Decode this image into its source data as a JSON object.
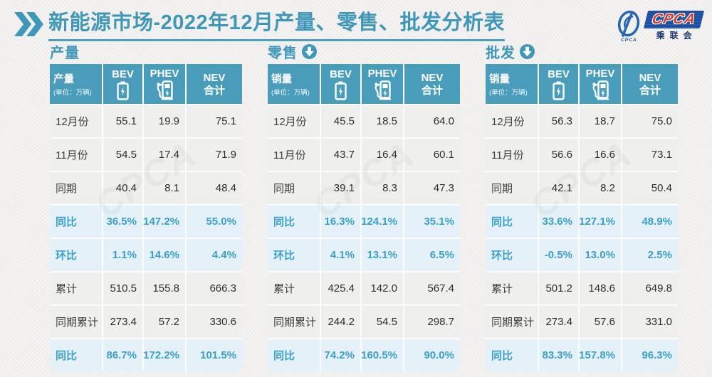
{
  "header": {
    "title_main": "新能源市场",
    "title_rest": "-2022年12月产量、零售、批发分析表",
    "logo_text": "CPCA",
    "logo_subtext": "乘联会",
    "logo_icon_caption": "CPCA"
  },
  "columns": {
    "bev": "BEV",
    "phev": "PHEV",
    "nev_line1": "NEV",
    "nev_line2": "合计"
  },
  "unit_label": "(单位：万辆)",
  "colors": {
    "accent_teal": "#3e98b9",
    "header_bg": "#4a9cbb",
    "row_bg": "#efefed",
    "highlight_row_bg": "#e4f1f9",
    "highlight_text": "#3aa0c8",
    "logo_blue": "#1e4f9e",
    "logo_red": "#cf3b2f"
  },
  "tables": [
    {
      "id": "production",
      "section_title": "产量",
      "down_arrow": false,
      "row_header_label": "产量",
      "watermark": "CPCA",
      "rows": [
        {
          "label": "12月份",
          "bev": "55.1",
          "phev": "19.9",
          "nev": "75.1",
          "highlight": false
        },
        {
          "label": "11月份",
          "bev": "54.5",
          "phev": "17.4",
          "nev": "71.9",
          "highlight": false
        },
        {
          "label": "同期",
          "bev": "40.4",
          "phev": "8.1",
          "nev": "48.4",
          "highlight": false
        },
        {
          "label": "同比",
          "bev": "36.5%",
          "phev": "147.2%",
          "nev": "55.0%",
          "highlight": true
        },
        {
          "label": "环比",
          "bev": "1.1%",
          "phev": "14.6%",
          "nev": "4.4%",
          "highlight": true
        },
        {
          "label": "累计",
          "bev": "510.5",
          "phev": "155.8",
          "nev": "666.3",
          "highlight": false
        },
        {
          "label": "同期累计",
          "bev": "273.4",
          "phev": "57.2",
          "nev": "330.6",
          "highlight": false
        },
        {
          "label": "同比",
          "bev": "86.7%",
          "phev": "172.2%",
          "nev": "101.5%",
          "highlight": true
        }
      ]
    },
    {
      "id": "retail",
      "section_title": "零售",
      "down_arrow": true,
      "row_header_label": "销量",
      "watermark": "CPCA",
      "rows": [
        {
          "label": "12月份",
          "bev": "45.5",
          "phev": "18.5",
          "nev": "64.0",
          "highlight": false
        },
        {
          "label": "11月份",
          "bev": "43.7",
          "phev": "16.4",
          "nev": "60.1",
          "highlight": false
        },
        {
          "label": "同期",
          "bev": "39.1",
          "phev": "8.3",
          "nev": "47.3",
          "highlight": false
        },
        {
          "label": "同比",
          "bev": "16.3%",
          "phev": "124.1%",
          "nev": "35.1%",
          "highlight": true
        },
        {
          "label": "环比",
          "bev": "4.1%",
          "phev": "13.1%",
          "nev": "6.5%",
          "highlight": true
        },
        {
          "label": "累计",
          "bev": "425.4",
          "phev": "142.0",
          "nev": "567.4",
          "highlight": false
        },
        {
          "label": "同期累计",
          "bev": "244.2",
          "phev": "54.5",
          "nev": "298.7",
          "highlight": false
        },
        {
          "label": "同比",
          "bev": "74.2%",
          "phev": "160.5%",
          "nev": "90.0%",
          "highlight": true
        }
      ]
    },
    {
      "id": "wholesale",
      "section_title": "批发",
      "down_arrow": true,
      "row_header_label": "销量",
      "watermark": "CPCA",
      "rows": [
        {
          "label": "12月份",
          "bev": "56.3",
          "phev": "18.7",
          "nev": "75.0",
          "highlight": false
        },
        {
          "label": "11月份",
          "bev": "56.6",
          "phev": "16.6",
          "nev": "73.1",
          "highlight": false
        },
        {
          "label": "同期",
          "bev": "42.1",
          "phev": "8.2",
          "nev": "50.4",
          "highlight": false
        },
        {
          "label": "同比",
          "bev": "33.6%",
          "phev": "127.1%",
          "nev": "48.9%",
          "highlight": true
        },
        {
          "label": "环比",
          "bev": "-0.5%",
          "phev": "13.0%",
          "nev": "2.5%",
          "highlight": true
        },
        {
          "label": "累计",
          "bev": "501.2",
          "phev": "148.6",
          "nev": "649.8",
          "highlight": false
        },
        {
          "label": "同期累计",
          "bev": "273.4",
          "phev": "57.6",
          "nev": "331.0",
          "highlight": false
        },
        {
          "label": "同比",
          "bev": "83.3%",
          "phev": "157.8%",
          "nev": "96.3%",
          "highlight": true
        }
      ]
    }
  ]
}
